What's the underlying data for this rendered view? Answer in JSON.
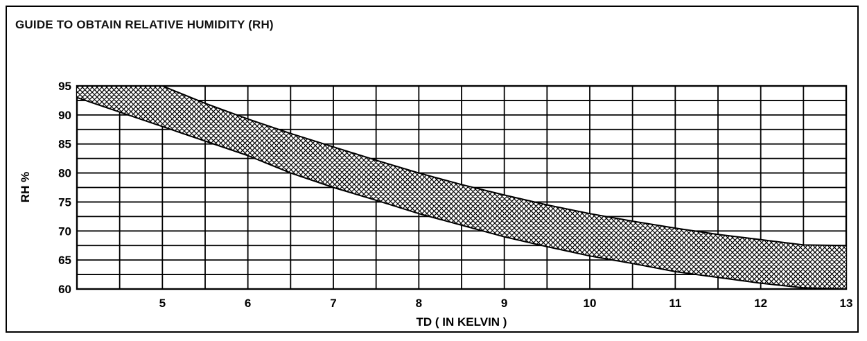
{
  "chart_data": {
    "type": "area",
    "title": "GUIDE TO OBTAIN RELATIVE HUMIDITY (RH)",
    "xlabel": "TD ( IN KELVIN )",
    "ylabel": "RH %",
    "xlim": [
      4,
      13
    ],
    "ylim": [
      60,
      95
    ],
    "x_ticks": [
      "5",
      "6",
      "7",
      "8",
      "9",
      "10",
      "11",
      "12",
      "13"
    ],
    "y_ticks": [
      "95",
      "90",
      "85",
      "80",
      "75",
      "70",
      "65",
      "60"
    ],
    "grid": true,
    "fill_pattern": "crosshatch",
    "band": {
      "x": [
        4.0,
        4.5,
        5.0,
        5.5,
        6.0,
        6.5,
        7.0,
        7.5,
        8.0,
        8.5,
        9.0,
        9.5,
        10.0,
        10.5,
        11.0,
        11.5,
        12.0,
        12.5,
        13.0
      ],
      "upper": [
        95.0,
        95.0,
        95.0,
        92.0,
        89.3,
        86.8,
        84.5,
        82.2,
        80.0,
        78.0,
        76.2,
        74.5,
        73.0,
        71.7,
        70.5,
        69.4,
        68.5,
        67.6,
        67.5
      ],
      "lower": [
        93.0,
        90.5,
        88.0,
        85.5,
        83.0,
        80.0,
        77.5,
        75.3,
        73.0,
        71.0,
        69.0,
        67.3,
        65.7,
        64.4,
        63.0,
        62.0,
        61.0,
        60.2,
        60.0
      ]
    }
  }
}
